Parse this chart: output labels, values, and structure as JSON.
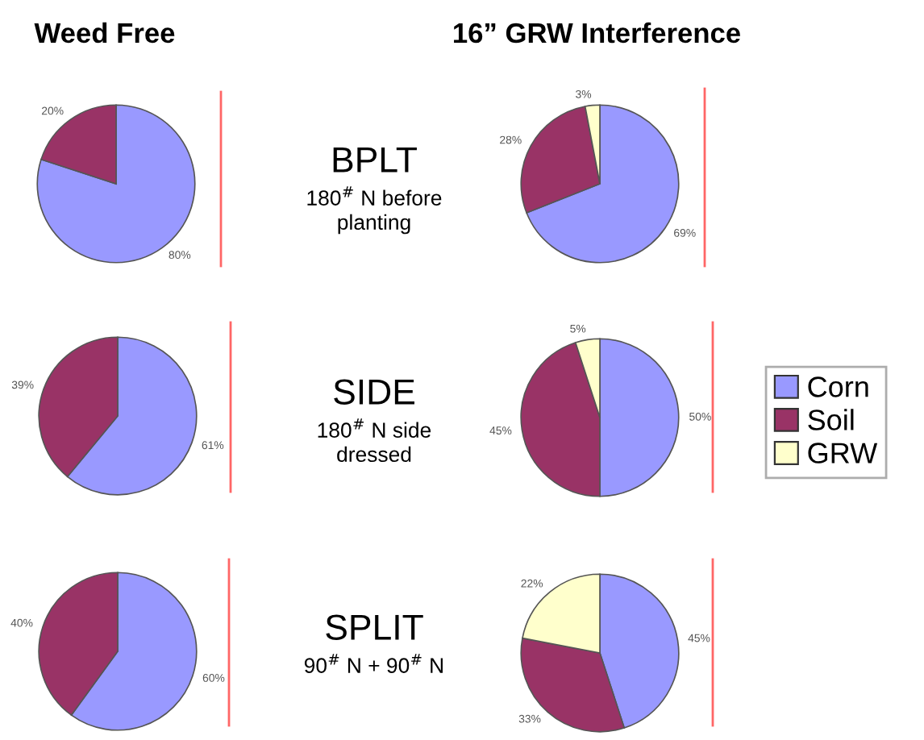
{
  "chart_data": [
    {
      "type": "pie",
      "title": "Weed Free",
      "subtitle": "BPLT",
      "annotations": [
        "180$^{#}$ N before",
        "planting"
      ],
      "categories": [
        null,
        null
      ],
      "values": [
        80,
        20
      ],
      "colors": [
        "#9999ff",
        "#993366"
      ],
      "value_labels": [
        "80%",
        "20%"
      ]
    },
    {
      "type": "pie",
      "title": "16” GRW Interference",
      "categories": [
        null,
        null,
        null
      ],
      "values": [
        69,
        28,
        3
      ],
      "colors": [
        "#9999ff",
        "#993366",
        "#ffffcc"
      ],
      "value_labels": [
        "69%",
        "28%",
        "3%"
      ]
    },
    {
      "type": "pie",
      "subtitle": "SIDE",
      "annotations": [
        "180$^{#}$ N side",
        "dressed"
      ],
      "categories": [
        null,
        null
      ],
      "values": [
        61,
        39
      ],
      "colors": [
        "#9999ff",
        "#993366"
      ],
      "value_labels": [
        "61%",
        "39%"
      ]
    },
    {
      "type": "pie",
      "legend": "right",
      "categories": [
        "Corn",
        "Soil",
        "GRW"
      ],
      "values": [
        50,
        45,
        5
      ],
      "colors": [
        "#9999ff",
        "#993366",
        "#ffffcc"
      ],
      "value_labels": [
        "50%",
        "45%",
        "5%"
      ]
    },
    {
      "type": "pie",
      "subtitle": "SPLIT",
      "annotations": [
        "90$^{#}$ N + 90$^{#}$ N"
      ],
      "categories": [
        null,
        null
      ],
      "values": [
        60,
        40
      ],
      "colors": [
        "#9999ff",
        "#993366"
      ],
      "value_labels": [
        "60%",
        "40%"
      ]
    },
    {
      "type": "pie",
      "categories": [
        null,
        null,
        null
      ],
      "values": [
        45,
        33,
        22
      ],
      "colors": [
        "#9999ff",
        "#993366",
        "#ffffcc"
      ],
      "value_labels": [
        "45%",
        "33%",
        "22%"
      ]
    }
  ]
}
